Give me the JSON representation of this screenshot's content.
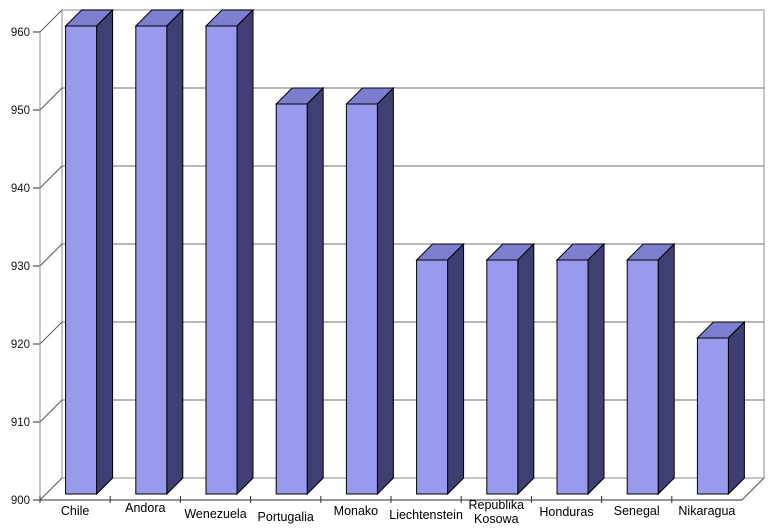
{
  "chart_data": {
    "type": "bar",
    "style": "3d-column",
    "title": "",
    "xlabel": "",
    "ylabel": "",
    "categories": [
      "Chile",
      "Andora",
      "Wenezuela",
      "Portugalia",
      "Monako",
      "Liechtenstein",
      "Republika Kosowa",
      "Honduras",
      "Senegal",
      "Nikaragua"
    ],
    "values": [
      960,
      960,
      960,
      950,
      950,
      930,
      930,
      930,
      930,
      920
    ],
    "ylim": [
      900,
      960
    ],
    "ytick_step": 10,
    "y_tick_labels": [
      "900",
      "910",
      "920",
      "930",
      "940",
      "950",
      "960"
    ],
    "grid": true,
    "legend": false,
    "colors": {
      "bar_front": "#9999ee",
      "bar_top": "#7e7ed0",
      "bar_side": "#3f3f73",
      "bar_outline": "#000000",
      "gridline": "#6f6f6f",
      "wall_border": "#b2b2b2",
      "wall_fill": "#ffffff",
      "axis_line": "#2e2e2e",
      "y_axis_line": "#8f8f8f",
      "connector_line": "#555555",
      "label_text": "#000000",
      "tick_text": "#141414",
      "background": "#ffffff"
    }
  }
}
